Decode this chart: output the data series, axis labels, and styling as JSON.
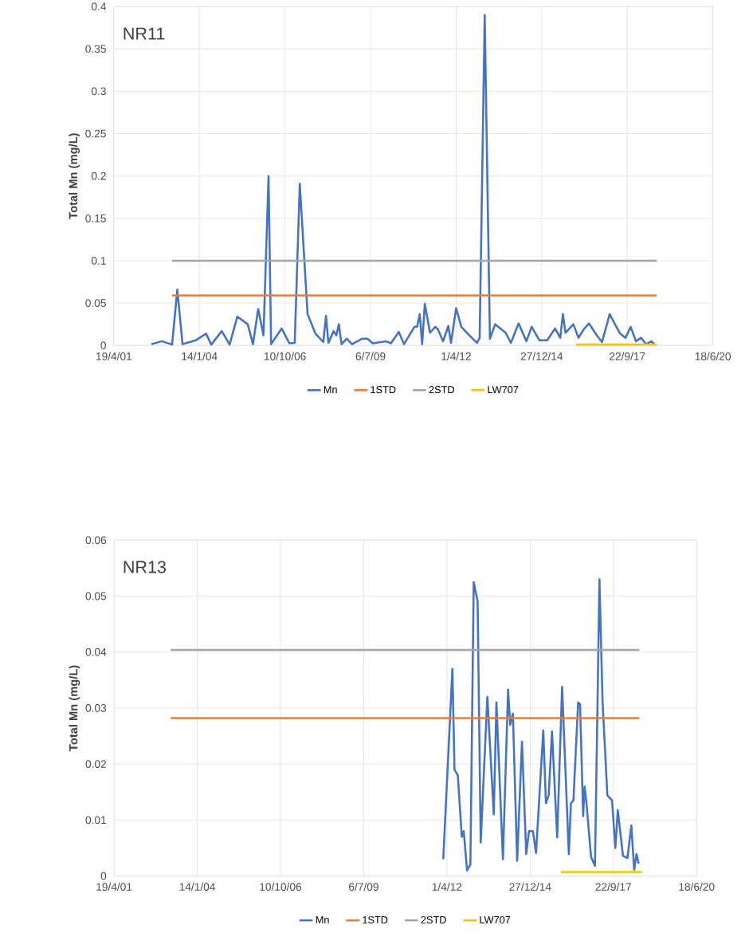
{
  "chart_data": [
    {
      "type": "line",
      "ylabel": "Total Mn (mg/L)",
      "annotations": [
        "NR11"
      ],
      "grid": true,
      "legend": "bottom",
      "xlim": [
        "2001-04-19",
        "2020-06-18"
      ],
      "xticks": [
        {
          "value": "2001-04-19",
          "label": "19/4/01"
        },
        {
          "value": "2004-01-14",
          "label": "14/1/04"
        },
        {
          "value": "2006-10-10",
          "label": "10/10/06"
        },
        {
          "value": "2009-07-06",
          "label": "6/7/09"
        },
        {
          "value": "2012-04-01",
          "label": "1/4/12"
        },
        {
          "value": "2014-12-27",
          "label": "27/12/14"
        },
        {
          "value": "2017-09-22",
          "label": "22/9/17"
        },
        {
          "value": "2020-06-18",
          "label": "18/6/20"
        }
      ],
      "ylim": [
        0,
        0.4
      ],
      "yticks": [
        0,
        0.05,
        0.1,
        0.15,
        0.2,
        0.25,
        0.3,
        0.35,
        0.4
      ],
      "series": [
        {
          "name": "Mn",
          "color": "#4472c4",
          "x": [
            "2002-07",
            "2002-11",
            "2003-03",
            "2003-05",
            "2003-07",
            "2003-12",
            "2004-04",
            "2004-06",
            "2004-10",
            "2005-01",
            "2005-04",
            "2005-08",
            "2005-10",
            "2005-12",
            "2006-02",
            "2006-04",
            "2006-05",
            "2006-09",
            "2006-12",
            "2007-02",
            "2007-04",
            "2007-07",
            "2007-10",
            "2008-01",
            "2008-02",
            "2008-03",
            "2008-05",
            "2008-06",
            "2008-07",
            "2008-08",
            "2008-10",
            "2008-12",
            "2009-04",
            "2009-06",
            "2009-08",
            "2010-01",
            "2010-03",
            "2010-06",
            "2010-08",
            "2010-12",
            "2011-01",
            "2011-02",
            "2011-03",
            "2011-04",
            "2011-06",
            "2011-08",
            "2011-09",
            "2011-11",
            "2012-01",
            "2012-02",
            "2012-04",
            "2012-06",
            "2012-09",
            "2012-12",
            "2013-01",
            "2013-03",
            "2013-05",
            "2013-07",
            "2013-11",
            "2014-01",
            "2014-04",
            "2014-07",
            "2014-09",
            "2014-12",
            "2015-03",
            "2015-06",
            "2015-08",
            "2015-09",
            "2015-10",
            "2016-01",
            "2016-03",
            "2016-05",
            "2016-07",
            "2016-10",
            "2016-12",
            "2017-03",
            "2017-05",
            "2017-07",
            "2017-09",
            "2017-11",
            "2018-01",
            "2018-03",
            "2018-05",
            "2018-07",
            "2018-08"
          ],
          "values": [
            0.0015,
            0.005,
            0.001,
            0.066,
            0.0015,
            0.006,
            0.014,
            0.001,
            0.017,
            0.001,
            0.034,
            0.025,
            0.0015,
            0.043,
            0.012,
            0.2,
            0.0015,
            0.02,
            0.0025,
            0.003,
            0.191,
            0.037,
            0.014,
            0.004,
            0.035,
            0.003,
            0.017,
            0.012,
            0.025,
            0.0015,
            0.008,
            0.0015,
            0.008,
            0.008,
            0.0025,
            0.005,
            0.0025,
            0.016,
            0.0015,
            0.022,
            0.022,
            0.037,
            0.0015,
            0.049,
            0.015,
            0.022,
            0.019,
            0.005,
            0.023,
            0.003,
            0.044,
            0.022,
            0.012,
            0.003,
            0.009,
            0.39,
            0.008,
            0.025,
            0.015,
            0.003,
            0.026,
            0.005,
            0.022,
            0.006,
            0.006,
            0.02,
            0.009,
            0.037,
            0.015,
            0.025,
            0.009,
            0.019,
            0.026,
            0.012,
            0.004,
            0.037,
            0.025,
            0.014,
            0.009,
            0.022,
            0.005,
            0.009,
            0.0015,
            0.005,
            0.0015
          ]
        },
        {
          "name": "1STD",
          "color": "#ed7d31",
          "x": [
            "2003-03",
            "2018-09"
          ],
          "values": [
            0.059,
            0.059
          ]
        },
        {
          "name": "2STD",
          "color": "#a5a5a5",
          "x": [
            "2003-03",
            "2018-09"
          ],
          "values": [
            0.1,
            0.1
          ]
        },
        {
          "name": "LW707",
          "color": "#ffc000",
          "x": [
            "2016-02",
            "2018-09"
          ],
          "values": [
            0.001,
            0.001
          ]
        }
      ]
    },
    {
      "type": "line",
      "ylabel": "Total Mn (mg/L)",
      "annotations": [
        "NR13"
      ],
      "grid": true,
      "legend": "bottom",
      "xlim": [
        "2001-04-19",
        "2020-06-18"
      ],
      "xticks": [
        {
          "value": "2001-04-19",
          "label": "19/4/01"
        },
        {
          "value": "2004-01-14",
          "label": "14/1/04"
        },
        {
          "value": "2006-10-10",
          "label": "10/10/06"
        },
        {
          "value": "2009-07-06",
          "label": "6/7/09"
        },
        {
          "value": "2012-04-01",
          "label": "1/4/12"
        },
        {
          "value": "2014-12-27",
          "label": "27/12/14"
        },
        {
          "value": "2017-09-22",
          "label": "22/9/17"
        },
        {
          "value": "2020-06-18",
          "label": "18/6/20"
        }
      ],
      "ylim": [
        0,
        0.06
      ],
      "yticks": [
        0,
        0.01,
        0.02,
        0.03,
        0.04,
        0.05,
        0.06
      ],
      "series": [
        {
          "name": "Mn",
          "color": "#4472c4",
          "x": [
            "2012-02-17",
            "2012-06-06",
            "2012-07-01",
            "2012-08-10",
            "2012-09-27",
            "2012-10-20",
            "2012-11-29",
            "2013-01-08",
            "2013-02-17",
            "2013-04-05",
            "2013-05-12",
            "2013-07-31",
            "2013-10-16",
            "2013-11-17",
            "2014-02-03",
            "2014-04-06",
            "2014-05-01",
            "2014-06-03",
            "2014-07-24",
            "2014-09-20",
            "2014-11-10",
            "2014-12-13",
            "2015-01-30",
            "2015-03-08",
            "2015-06-03",
            "2015-07-05",
            "2015-08-07",
            "2015-09-16",
            "2015-11-17",
            "2016-01-15",
            "2016-04-05",
            "2016-04-30",
            "2016-05-30",
            "2016-07-26",
            "2016-08-18",
            "2016-09-24",
            "2016-10-12",
            "2016-11-03",
            "2016-12-28",
            "2017-02-13",
            "2017-04-08",
            "2017-05-15",
            "2017-07-12",
            "2017-09-06",
            "2017-10-16",
            "2017-11-14",
            "2018-01-15",
            "2018-03-10",
            "2018-04-26",
            "2018-05-30",
            "2018-06-27",
            "2018-07-23"
          ],
          "values": [
            0.003,
            0.037,
            0.019,
            0.018,
            0.007,
            0.008,
            0.001,
            0.002,
            0.0525,
            0.049,
            0.006,
            0.032,
            0.011,
            0.031,
            0.003,
            0.0333,
            0.027,
            0.029,
            0.0027,
            0.024,
            0.0039,
            0.008,
            0.008,
            0.0041,
            0.026,
            0.013,
            0.0144,
            0.0258,
            0.0069,
            0.0338,
            0.0039,
            0.013,
            0.0135,
            0.031,
            0.0307,
            0.0107,
            0.016,
            0.013,
            0.0034,
            0.0018,
            0.053,
            0.0312,
            0.0144,
            0.0135,
            0.005,
            0.0118,
            0.0036,
            0.0032,
            0.009,
            0.0011,
            0.0039,
            0.0022
          ]
        },
        {
          "name": "1STD",
          "color": "#ed7d31",
          "x": [
            "2003-03",
            "2018-08"
          ],
          "values": [
            0.0282,
            0.0282
          ]
        },
        {
          "name": "2STD",
          "color": "#a5a5a5",
          "x": [
            "2003-03",
            "2018-08"
          ],
          "values": [
            0.0404,
            0.0404
          ]
        },
        {
          "name": "LW707",
          "color": "#ffc000",
          "x": [
            "2016-01",
            "2018-09"
          ],
          "values": [
            0.0007,
            0.0007
          ]
        }
      ]
    }
  ]
}
